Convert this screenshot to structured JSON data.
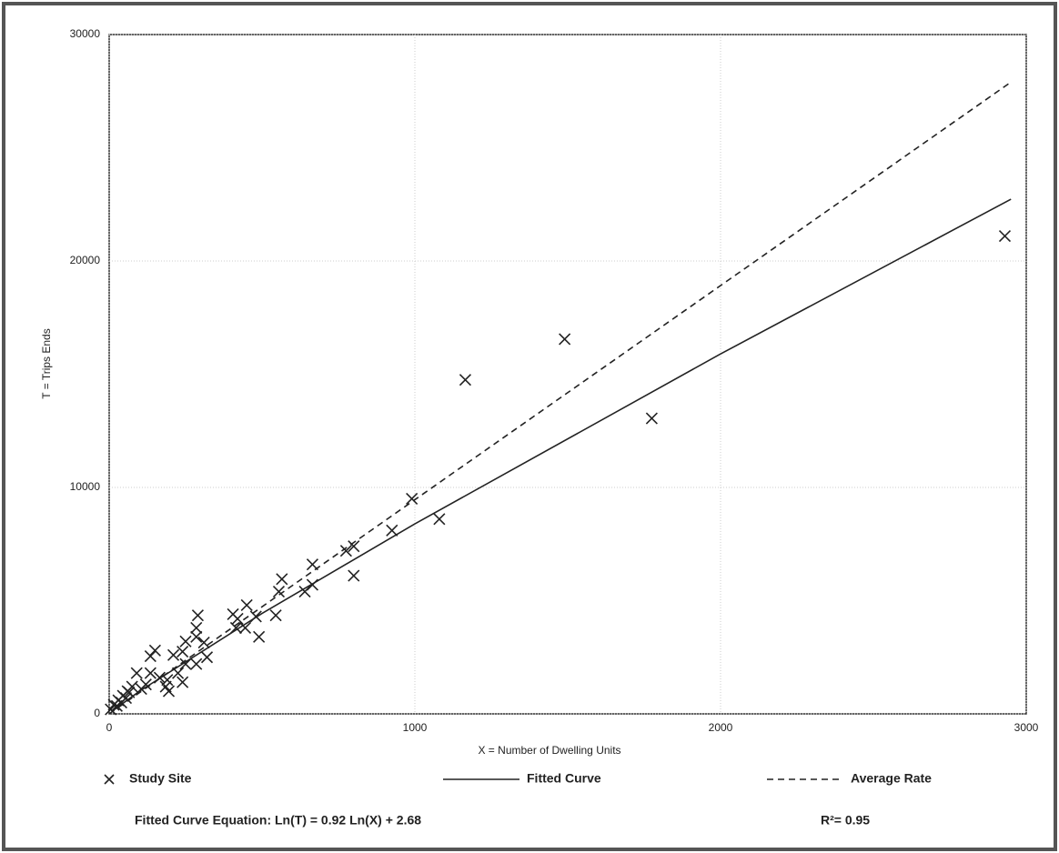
{
  "chart_data": {
    "type": "scatter",
    "x_label": "X = Number of Dwelling Units",
    "y_label": "T = Trips Ends",
    "xlim": [
      0,
      3000
    ],
    "ylim": [
      0,
      30000
    ],
    "xticks": [
      0,
      1000,
      2000,
      3000
    ],
    "yticks": [
      0,
      10000,
      20000,
      30000
    ],
    "grid": true,
    "series": [
      {
        "name": "Study Site",
        "color": "#222222",
        "style": "marker",
        "x": [
          2930,
          1490,
          1165,
          1775,
          990,
          1080,
          925,
          800,
          800,
          775,
          665,
          665,
          640,
          565,
          555,
          545,
          450,
          480,
          490,
          420,
          405,
          415,
          445,
          290,
          285,
          285,
          285,
          250,
          240,
          250,
          225,
          210,
          150,
          135,
          135,
          105,
          90,
          75,
          60,
          45,
          30,
          15,
          5,
          190,
          165,
          185,
          240,
          195,
          25,
          40,
          55,
          65,
          120,
          310,
          320
        ],
        "values": [
          21100,
          16550,
          14750,
          13050,
          9500,
          8600,
          8100,
          6100,
          7400,
          7200,
          6600,
          5700,
          5400,
          5950,
          5400,
          4350,
          4800,
          4300,
          3400,
          4200,
          4400,
          3800,
          3800,
          4350,
          3800,
          3400,
          2200,
          3200,
          2750,
          2200,
          1800,
          2600,
          2800,
          2550,
          1800,
          1100,
          1800,
          1200,
          1000,
          800,
          600,
          400,
          200,
          1500,
          1600,
          1200,
          1400,
          1000,
          350,
          500,
          700,
          950,
          1300,
          3150,
          2500
        ]
      },
      {
        "name": "Fitted Curve",
        "color": "#222222",
        "style": "solid",
        "x": [
          10,
          100,
          500,
          1000,
          2000,
          2950
        ],
        "values": [
          121,
          1009,
          4434,
          8393,
          15895,
          22730
        ]
      },
      {
        "name": "Average Rate",
        "color": "#222222",
        "style": "dashed",
        "x": [
          0,
          2950
        ],
        "values": [
          0,
          27900
        ]
      }
    ],
    "annotations": [
      "Fitted Curve Equation: Ln(T) = 0.92 Ln(X) + 2.68",
      "R²= 0.95"
    ]
  }
}
